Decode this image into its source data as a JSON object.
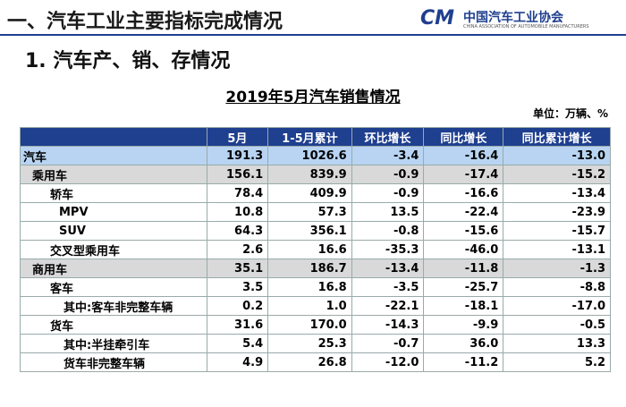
{
  "header": {
    "title": "一、汽车工业主要指标完成情况",
    "logo": {
      "name": "中国汽车工业协会",
      "english": "CHINA ASSOCIATION OF AUTOMOBILE MANUFACTURERS"
    }
  },
  "section": "1. 汽车产、销、存情况",
  "table": {
    "title": "2019年5月汽车销售情况",
    "unit": "单位：万辆、%",
    "columns": [
      "",
      "5月",
      "1-5月累计",
      "环比增长",
      "同比增长",
      "同比累计增长"
    ],
    "rows": [
      [
        "汽车",
        "191.3",
        "1026.6",
        "-3.4",
        "-16.4",
        "-13.0"
      ],
      [
        "乘用车",
        "156.1",
        "839.9",
        "-0.9",
        "-17.4",
        "-15.2"
      ],
      [
        "轿车",
        "78.4",
        "409.9",
        "-0.9",
        "-16.6",
        "-13.4"
      ],
      [
        "MPV",
        "10.8",
        "57.3",
        "13.5",
        "-22.4",
        "-23.9"
      ],
      [
        "SUV",
        "64.3",
        "356.1",
        "-0.8",
        "-15.6",
        "-15.7"
      ],
      [
        "交叉型乘用车",
        "2.6",
        "16.6",
        "-35.3",
        "-46.0",
        "-13.1"
      ],
      [
        "商用车",
        "35.1",
        "186.7",
        "-13.4",
        "-11.8",
        "-1.3"
      ],
      [
        "客车",
        "3.5",
        "16.8",
        "-3.5",
        "-25.7",
        "-8.8"
      ],
      [
        "其中:客车非完整车辆",
        "0.2",
        "1.0",
        "-22.1",
        "-18.1",
        "-17.0"
      ],
      [
        "货车",
        "31.6",
        "170.0",
        "-14.3",
        "-9.9",
        "-0.5"
      ],
      [
        "其中:半挂牵引车",
        "5.4",
        "25.3",
        "-0.7",
        "36.0",
        "13.3"
      ],
      [
        "货车非完整车辆",
        "4.9",
        "26.8",
        "-12.0",
        "-11.2",
        "5.2"
      ]
    ]
  }
}
